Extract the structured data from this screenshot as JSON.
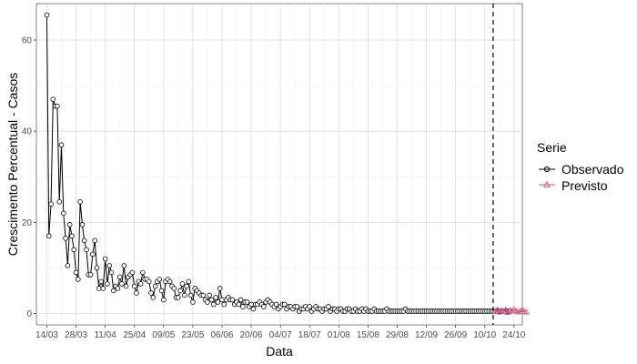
{
  "chart_data": {
    "type": "line",
    "xlabel": "Data",
    "ylabel": "Crescimento Percentual - Casos",
    "ylim": [
      -2.5,
      68
    ],
    "xlim": [
      -5,
      228
    ],
    "grid": true,
    "legend_placement": "right",
    "legend_title": "Serie",
    "x_ticks": [
      {
        "day": 0,
        "label": "14/03"
      },
      {
        "day": 14,
        "label": "28/03"
      },
      {
        "day": 28,
        "label": "11/04"
      },
      {
        "day": 42,
        "label": "25/04"
      },
      {
        "day": 56,
        "label": "09/05"
      },
      {
        "day": 70,
        "label": "23/05"
      },
      {
        "day": 84,
        "label": "06/06"
      },
      {
        "day": 98,
        "label": "20/06"
      },
      {
        "day": 112,
        "label": "04/07"
      },
      {
        "day": 126,
        "label": "18/07"
      },
      {
        "day": 140,
        "label": "01/08"
      },
      {
        "day": 154,
        "label": "15/08"
      },
      {
        "day": 168,
        "label": "29/08"
      },
      {
        "day": 182,
        "label": "12/09"
      },
      {
        "day": 196,
        "label": "26/09"
      },
      {
        "day": 210,
        "label": "10/10"
      },
      {
        "day": 224,
        "label": "24/10"
      }
    ],
    "y_ticks": [
      0,
      20,
      40,
      60
    ],
    "forecast_start_day": 214,
    "series": [
      {
        "name": "Observado",
        "color": "#000000",
        "marker": "circle",
        "values": [
          65.5,
          17,
          24,
          47,
          45.5,
          45.5,
          24.5,
          37,
          22,
          16.5,
          10.5,
          19.5,
          17,
          14,
          9,
          7.5,
          24.5,
          19.5,
          16,
          14,
          8.5,
          8.5,
          13,
          16,
          10,
          5.5,
          7,
          5.5,
          12,
          6.5,
          10.5,
          9,
          5,
          6,
          5.5,
          8,
          6.5,
          10.5,
          6,
          8,
          8.5,
          9,
          6,
          4.5,
          7,
          6.5,
          9,
          7.5,
          7.5,
          7,
          4.5,
          3.5,
          6,
          7,
          7.5,
          5,
          3,
          7,
          7.5,
          7,
          6,
          5.5,
          3.5,
          3.5,
          5,
          6.5,
          4,
          6,
          7,
          4,
          2.5,
          5.5,
          5,
          4.5,
          4,
          4,
          3,
          2.5,
          4,
          3,
          2,
          3.5,
          2.5,
          5.5,
          3,
          2,
          3,
          3.5,
          3,
          3,
          2,
          2.5,
          2,
          3,
          1.5,
          2.5,
          2.5,
          1.5,
          2,
          1,
          2,
          2,
          2.5,
          2,
          1.5,
          2.5,
          3,
          2.5,
          2,
          1.5,
          2,
          1,
          1.5,
          2,
          2,
          1,
          1.5,
          1.5,
          1,
          1.5,
          1.5,
          0.5,
          1,
          1,
          1.5,
          1,
          1.5,
          0.5,
          1,
          1.5,
          1,
          1,
          0.5,
          1,
          1,
          1.5,
          0.5,
          1,
          1,
          0.5,
          1,
          1,
          0.5,
          0.5,
          1,
          1,
          0.5,
          0.5,
          1,
          0.5,
          0.5,
          1,
          0.5,
          1,
          0.5,
          0.5,
          0.5,
          1,
          0.5,
          0.5,
          0.5,
          0.5,
          0.5,
          1,
          0.5,
          0.5,
          0.5,
          0.5,
          0.5,
          0.5,
          0.5,
          0.5,
          1,
          0.5,
          0.5,
          0.5,
          0.5,
          0.5,
          0.5,
          0.5,
          0.5,
          0.5,
          0.5,
          0.5,
          0.5,
          0.5,
          0.5,
          0.5,
          0.5,
          0.5,
          0.5,
          0.5,
          0.5,
          0.5,
          0.5,
          0.5,
          0.5,
          0.5,
          0.5,
          0.5,
          0.5,
          0.5,
          0.5,
          0.5,
          0.5,
          0.5,
          0.5,
          0.5,
          0.5,
          0.5,
          0.5,
          0.5,
          0.5,
          0.5,
          0.5,
          0.5,
          0.5,
          0.5,
          0.5,
          0.5,
          0.5,
          0.5,
          0.5
        ]
      },
      {
        "name": "Previsto",
        "color": "#d0587e",
        "marker": "triangle",
        "x_start_day": 215,
        "values": [
          0.5,
          0.8,
          0.3,
          0.6,
          0.5,
          0.8,
          0.2,
          0.6,
          0.5,
          0.9,
          0.6,
          0.3,
          0.5,
          0.8,
          0.4,
          0.3
        ]
      }
    ]
  }
}
